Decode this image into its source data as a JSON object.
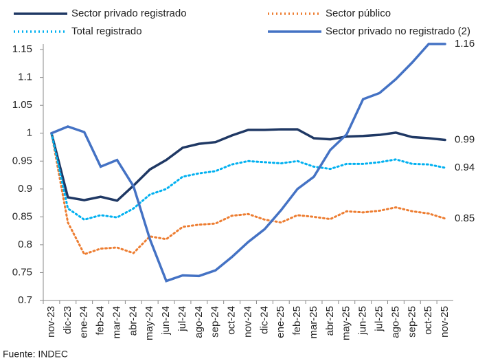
{
  "chart_data": {
    "type": "line",
    "categories": [
      "nov-23",
      "dic-23",
      "ene-24",
      "feb-24",
      "mar-24",
      "abr-24",
      "may-24",
      "jun-24",
      "jul-24",
      "ago-24",
      "sep-24",
      "oct-24",
      "nov-24",
      "dic-24",
      "ene-25",
      "feb-25",
      "mar-25",
      "abr-25",
      "may-25",
      "jun-25",
      "jul-25",
      "ago-25",
      "sep-25",
      "oct-25",
      "nov-25"
    ],
    "series": [
      {
        "name": "Sector privado registrado",
        "color": "#1f3864",
        "style": "solid",
        "values": [
          1.0,
          0.885,
          0.88,
          0.886,
          0.879,
          0.906,
          0.935,
          0.952,
          0.974,
          0.981,
          0.984,
          0.996,
          1.006,
          1.006,
          1.007,
          1.007,
          0.991,
          0.989,
          0.994,
          0.995,
          0.997,
          1.001,
          0.993,
          0.991,
          0.988
        ],
        "value_labels": [
          null,
          null,
          null,
          null,
          null,
          null,
          null,
          null,
          null,
          null,
          null,
          null,
          null,
          null,
          null,
          null,
          null,
          null,
          null,
          null,
          null,
          null,
          null,
          null,
          "0.99"
        ]
      },
      {
        "name": "Sector público",
        "color": "#ed7d31",
        "style": "dotted",
        "values": [
          1.0,
          0.84,
          0.783,
          0.793,
          0.795,
          0.785,
          0.815,
          0.81,
          0.832,
          0.836,
          0.838,
          0.852,
          0.855,
          0.845,
          0.84,
          0.853,
          0.85,
          0.846,
          0.86,
          0.858,
          0.861,
          0.867,
          0.86,
          0.856,
          0.847
        ],
        "value_labels": [
          null,
          null,
          null,
          null,
          null,
          null,
          null,
          null,
          null,
          null,
          null,
          null,
          null,
          null,
          null,
          null,
          null,
          null,
          null,
          null,
          null,
          null,
          null,
          null,
          "0.85"
        ]
      },
      {
        "name": "Total registrado",
        "color": "#00b0f0",
        "style": "dotted",
        "values": [
          1.0,
          0.865,
          0.845,
          0.853,
          0.849,
          0.865,
          0.89,
          0.9,
          0.922,
          0.928,
          0.932,
          0.944,
          0.95,
          0.948,
          0.946,
          0.95,
          0.94,
          0.936,
          0.945,
          0.945,
          0.948,
          0.953,
          0.945,
          0.944,
          0.938
        ],
        "value_labels": [
          null,
          null,
          null,
          null,
          null,
          null,
          null,
          null,
          null,
          null,
          null,
          null,
          null,
          null,
          null,
          null,
          null,
          null,
          null,
          null,
          null,
          null,
          null,
          null,
          "0.94"
        ]
      },
      {
        "name": "Sector privado no registrado (2)",
        "color": "#4472c4",
        "style": "solid",
        "values": [
          1.0,
          1.012,
          1.002,
          0.94,
          0.952,
          0.905,
          0.81,
          0.735,
          0.745,
          0.744,
          0.754,
          0.778,
          0.805,
          0.828,
          0.862,
          0.9,
          0.922,
          0.97,
          0.998,
          1.061,
          1.072,
          1.097,
          1.127,
          1.16,
          1.16
        ],
        "value_labels": [
          null,
          null,
          null,
          null,
          null,
          null,
          null,
          null,
          null,
          null,
          null,
          null,
          null,
          null,
          null,
          null,
          null,
          null,
          null,
          null,
          null,
          null,
          null,
          null,
          "1.16"
        ]
      }
    ],
    "ylim": [
      0.7,
      1.16
    ],
    "yticks": [
      0.7,
      0.75,
      0.8,
      0.85,
      0.9,
      0.95,
      1,
      1.05,
      1.1,
      1.15
    ],
    "source": "Fuente: INDEC"
  }
}
